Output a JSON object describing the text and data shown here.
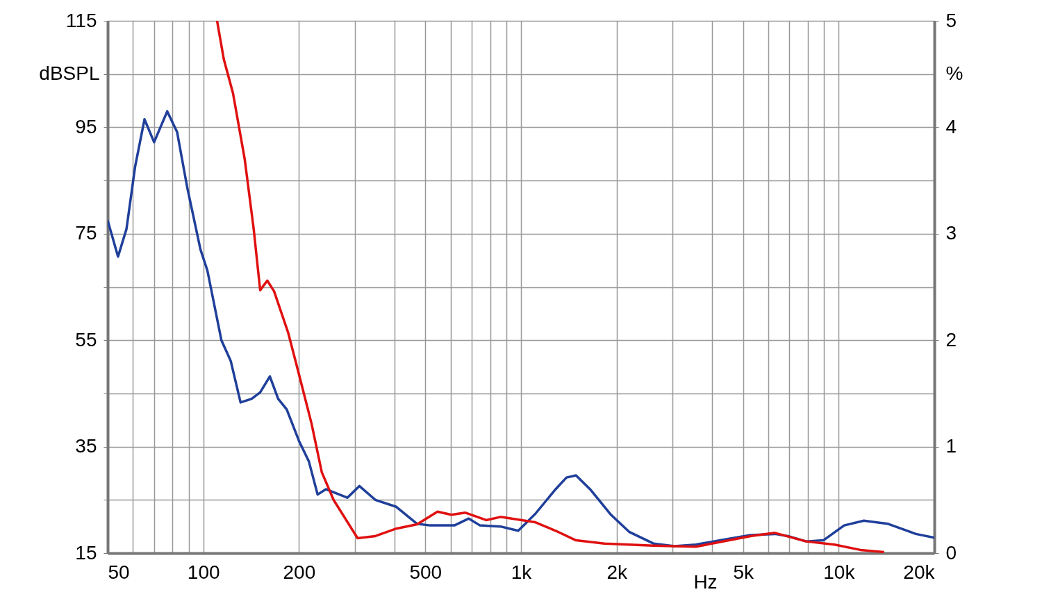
{
  "chart_data": {
    "type": "line",
    "xlabel": "Hz",
    "ylabel": "dBSPL",
    "y2label": "%",
    "log": "x",
    "grid": true,
    "line_style": "solid",
    "marker": "none",
    "xlim": [
      50,
      20000
    ],
    "xticks": [
      50,
      {
        "value": 60,
        "label": null
      },
      {
        "value": 70,
        "label": null
      },
      {
        "value": 80,
        "label": null
      },
      {
        "value": 90,
        "label": null
      },
      100,
      200,
      {
        "value": 300,
        "label": null
      },
      {
        "value": 400,
        "label": null
      },
      500,
      {
        "value": 600,
        "label": null
      },
      {
        "value": 700,
        "label": null
      },
      {
        "value": 800,
        "label": null
      },
      {
        "value": 900,
        "label": null
      },
      {
        "value": 1000,
        "label": "1k"
      },
      {
        "value": 2000,
        "label": "2k"
      },
      {
        "value": 3000,
        "label": null
      },
      {
        "value": 4000,
        "label": null
      },
      {
        "value": 5000,
        "label": "5k"
      },
      {
        "value": 6000,
        "label": null
      },
      {
        "value": 7000,
        "label": null
      },
      {
        "value": 8000,
        "label": null
      },
      {
        "value": 9000,
        "label": null
      },
      {
        "value": 10000,
        "label": "10k"
      },
      {
        "value": 20000,
        "label": "20k"
      }
    ],
    "ylim": [
      15,
      115
    ],
    "yticks": [
      15,
      {
        "value": 25,
        "label": null
      },
      35,
      {
        "value": 45,
        "label": null
      },
      55,
      {
        "value": 65,
        "label": null
      },
      75,
      {
        "value": 85,
        "label": null
      },
      95,
      {
        "value": 105,
        "label": null
      },
      115
    ],
    "y2lim": [
      0,
      5
    ],
    "y2ticks": [
      0,
      1,
      2,
      3,
      4,
      5
    ],
    "series": [
      {
        "color": "#1f3f9a",
        "x": [
          50,
          53.9,
          57.3,
          61,
          65.3,
          70,
          77,
          82.7,
          89,
          98,
          103,
          114,
          122,
          131,
          142,
          151,
          162,
          172,
          183,
          200,
          215,
          229,
          243,
          284,
          310,
          348,
          405,
          471,
          517,
          617,
          685,
          743,
          862,
          980,
          1110,
          1285,
          1390,
          1490,
          1650,
          1920,
          2190,
          2610,
          3040,
          3550,
          4330,
          5280,
          6300,
          6920,
          7900,
          8950,
          10400,
          12000,
          14300,
          17500,
          20000
        ],
        "values": [
          77.5,
          70.7,
          75.9,
          87.6,
          96.5,
          92.2,
          98,
          94.1,
          83.7,
          72,
          68.1,
          55,
          51.1,
          43.3,
          44,
          45.2,
          48.2,
          44,
          42,
          36.1,
          32.2,
          26,
          27,
          25.4,
          27.6,
          25,
          23.7,
          20.5,
          20.2,
          20.2,
          21.5,
          20.2,
          20,
          19.2,
          22.4,
          27,
          29.2,
          29.6,
          27,
          22.2,
          19,
          16.8,
          16.3,
          16.6,
          17.5,
          18.4,
          18.6,
          18.2,
          17.2,
          17.4,
          20.2,
          21.1,
          20.5,
          18.6,
          17.9
        ]
      },
      {
        "color": "#e01010",
        "axis": "y2",
        "x": [
          110.5,
          116,
          124,
          135,
          144,
          151,
          159,
          167,
          185,
          200,
          219,
          236,
          257,
          306,
          348,
          405,
          471,
          546,
          604,
          667,
          777,
          862,
          1110,
          1285,
          1490,
          1830,
          2610,
          3550,
          5280,
          6300,
          7900,
          9700,
          11700,
          13900
        ],
        "values": [
          5.0,
          4.64,
          4.32,
          3.7,
          3.05,
          2.47,
          2.56,
          2.46,
          2.07,
          1.68,
          1.22,
          0.76,
          0.5,
          0.14,
          0.16,
          0.23,
          0.27,
          0.39,
          0.36,
          0.38,
          0.31,
          0.34,
          0.29,
          0.21,
          0.12,
          0.09,
          0.07,
          0.06,
          0.16,
          0.19,
          0.11,
          0.08,
          0.03,
          0.01
        ]
      }
    ]
  }
}
